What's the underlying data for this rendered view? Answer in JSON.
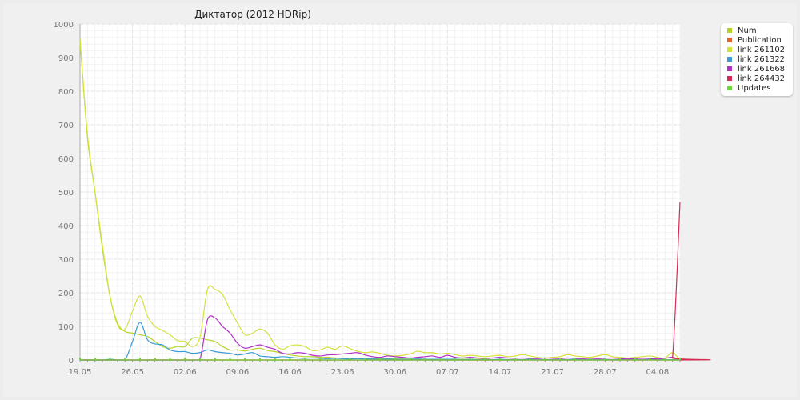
{
  "chart_data": {
    "type": "line",
    "title": "Диктатор (2012 HDRip)",
    "xlabel": "",
    "ylabel": "",
    "ylim": [
      0,
      1000
    ],
    "yticks": [
      0,
      100,
      200,
      300,
      400,
      500,
      600,
      700,
      800,
      900,
      1000
    ],
    "xticks": [
      "19.05",
      "26.05",
      "02.06",
      "09.06",
      "16.06",
      "23.06",
      "30.06",
      "07.07",
      "14.07",
      "21.07",
      "28.07",
      "04.08"
    ],
    "grid": true,
    "legend_position": "top-right",
    "x_start": "2012-05-19",
    "x_days": 80,
    "series": [
      {
        "name": "Num",
        "color": "#b8d42a",
        "points": [
          [
            0,
            955
          ],
          [
            1,
            660
          ],
          [
            2,
            500
          ],
          [
            3,
            330
          ],
          [
            4,
            190
          ],
          [
            5,
            110
          ],
          [
            6,
            85
          ],
          [
            7,
            80
          ],
          [
            8,
            75
          ],
          [
            9,
            70
          ],
          [
            10,
            55
          ],
          [
            11,
            40
          ],
          [
            12,
            35
          ],
          [
            13,
            40
          ],
          [
            14,
            40
          ],
          [
            15,
            65
          ],
          [
            16,
            65
          ],
          [
            17,
            60
          ],
          [
            18,
            55
          ],
          [
            19,
            40
          ],
          [
            20,
            30
          ],
          [
            21,
            30
          ],
          [
            22,
            27
          ],
          [
            23,
            32
          ],
          [
            24,
            35
          ],
          [
            25,
            28
          ],
          [
            26,
            25
          ],
          [
            27,
            20
          ],
          [
            28,
            15
          ],
          [
            29,
            12
          ],
          [
            30,
            10
          ],
          [
            31,
            10
          ],
          [
            32,
            8
          ],
          [
            33,
            8
          ],
          [
            34,
            6
          ],
          [
            35,
            6
          ],
          [
            36,
            5
          ],
          [
            37,
            5
          ],
          [
            38,
            4
          ],
          [
            39,
            4
          ],
          [
            40,
            4
          ],
          [
            41,
            4
          ],
          [
            42,
            3
          ],
          [
            43,
            3
          ],
          [
            44,
            3
          ],
          [
            45,
            3
          ],
          [
            46,
            2
          ],
          [
            47,
            2
          ],
          [
            48,
            2
          ],
          [
            49,
            2
          ],
          [
            50,
            2
          ],
          [
            51,
            2
          ],
          [
            52,
            2
          ],
          [
            53,
            2
          ],
          [
            54,
            2
          ],
          [
            55,
            1
          ],
          [
            56,
            1
          ],
          [
            57,
            1
          ],
          [
            58,
            1
          ],
          [
            59,
            1
          ],
          [
            60,
            1
          ],
          [
            61,
            1
          ],
          [
            62,
            1
          ],
          [
            63,
            1
          ],
          [
            64,
            1
          ],
          [
            65,
            1
          ],
          [
            66,
            1
          ],
          [
            67,
            1
          ],
          [
            68,
            1
          ],
          [
            69,
            1
          ],
          [
            70,
            1
          ],
          [
            71,
            1
          ],
          [
            72,
            1
          ],
          [
            73,
            1
          ],
          [
            74,
            1
          ],
          [
            75,
            1
          ],
          [
            76,
            1
          ],
          [
            77,
            1
          ],
          [
            78,
            1
          ],
          [
            79,
            1
          ],
          [
            80,
            1
          ]
        ]
      },
      {
        "name": "Publication",
        "color": "#e0642c",
        "points": [
          [
            0,
            0
          ],
          [
            80,
            0
          ]
        ]
      },
      {
        "name": "link 261102",
        "color": "#d4e23c",
        "points": [
          [
            0,
            950
          ],
          [
            1,
            670
          ],
          [
            2,
            500
          ],
          [
            3,
            340
          ],
          [
            4,
            190
          ],
          [
            5,
            105
          ],
          [
            6,
            92
          ],
          [
            7,
            145
          ],
          [
            8,
            190
          ],
          [
            9,
            130
          ],
          [
            10,
            100
          ],
          [
            11,
            88
          ],
          [
            12,
            75
          ],
          [
            13,
            58
          ],
          [
            14,
            55
          ],
          [
            15,
            40
          ],
          [
            16,
            68
          ],
          [
            17,
            210
          ],
          [
            18,
            210
          ],
          [
            19,
            195
          ],
          [
            20,
            150
          ],
          [
            21,
            110
          ],
          [
            22,
            75
          ],
          [
            23,
            80
          ],
          [
            24,
            92
          ],
          [
            25,
            80
          ],
          [
            26,
            45
          ],
          [
            27,
            32
          ],
          [
            28,
            42
          ],
          [
            29,
            45
          ],
          [
            30,
            40
          ],
          [
            31,
            28
          ],
          [
            32,
            30
          ],
          [
            33,
            38
          ],
          [
            34,
            32
          ],
          [
            35,
            42
          ],
          [
            36,
            34
          ],
          [
            37,
            26
          ],
          [
            38,
            22
          ],
          [
            39,
            24
          ],
          [
            40,
            20
          ],
          [
            41,
            14
          ],
          [
            42,
            12
          ],
          [
            43,
            14
          ],
          [
            44,
            18
          ],
          [
            45,
            26
          ],
          [
            46,
            22
          ],
          [
            47,
            22
          ],
          [
            48,
            18
          ],
          [
            49,
            20
          ],
          [
            50,
            16
          ],
          [
            51,
            12
          ],
          [
            52,
            14
          ],
          [
            53,
            12
          ],
          [
            54,
            10
          ],
          [
            55,
            12
          ],
          [
            56,
            14
          ],
          [
            57,
            10
          ],
          [
            58,
            12
          ],
          [
            59,
            16
          ],
          [
            60,
            12
          ],
          [
            61,
            8
          ],
          [
            62,
            6
          ],
          [
            63,
            8
          ],
          [
            64,
            10
          ],
          [
            65,
            16
          ],
          [
            66,
            12
          ],
          [
            67,
            10
          ],
          [
            68,
            8
          ],
          [
            69,
            12
          ],
          [
            70,
            16
          ],
          [
            71,
            10
          ],
          [
            72,
            8
          ],
          [
            73,
            6
          ],
          [
            74,
            8
          ],
          [
            75,
            10
          ],
          [
            76,
            12
          ],
          [
            77,
            8
          ],
          [
            78,
            6
          ],
          [
            79,
            22
          ],
          [
            80,
            0
          ]
        ]
      },
      {
        "name": "link 261322",
        "color": "#3b9bd4",
        "points": [
          [
            0,
            0
          ],
          [
            3,
            0
          ],
          [
            4,
            2
          ],
          [
            5,
            0
          ],
          [
            6,
            0
          ],
          [
            7,
            55
          ],
          [
            8,
            112
          ],
          [
            9,
            60
          ],
          [
            10,
            48
          ],
          [
            11,
            45
          ],
          [
            12,
            30
          ],
          [
            13,
            25
          ],
          [
            14,
            25
          ],
          [
            15,
            20
          ],
          [
            16,
            22
          ],
          [
            17,
            30
          ],
          [
            18,
            25
          ],
          [
            19,
            22
          ],
          [
            20,
            20
          ],
          [
            21,
            15
          ],
          [
            22,
            18
          ],
          [
            23,
            22
          ],
          [
            24,
            12
          ],
          [
            25,
            10
          ],
          [
            26,
            8
          ],
          [
            27,
            10
          ],
          [
            28,
            8
          ],
          [
            29,
            6
          ],
          [
            30,
            5
          ],
          [
            31,
            6
          ],
          [
            32,
            5
          ],
          [
            33,
            4
          ],
          [
            34,
            5
          ],
          [
            35,
            4
          ],
          [
            36,
            3
          ],
          [
            37,
            4
          ],
          [
            38,
            3
          ],
          [
            39,
            3
          ],
          [
            40,
            2
          ],
          [
            41,
            3
          ],
          [
            42,
            2
          ],
          [
            43,
            2
          ],
          [
            44,
            2
          ],
          [
            45,
            3
          ],
          [
            46,
            2
          ],
          [
            47,
            2
          ],
          [
            48,
            2
          ],
          [
            49,
            2
          ],
          [
            50,
            2
          ],
          [
            51,
            1
          ],
          [
            52,
            2
          ],
          [
            53,
            1
          ],
          [
            54,
            1
          ],
          [
            55,
            1
          ],
          [
            56,
            2
          ],
          [
            57,
            1
          ],
          [
            58,
            1
          ],
          [
            59,
            1
          ],
          [
            60,
            2
          ],
          [
            61,
            1
          ],
          [
            62,
            1
          ],
          [
            63,
            1
          ],
          [
            64,
            1
          ],
          [
            65,
            1
          ],
          [
            66,
            2
          ],
          [
            67,
            1
          ],
          [
            68,
            1
          ],
          [
            69,
            1
          ],
          [
            70,
            1
          ],
          [
            71,
            1
          ],
          [
            72,
            1
          ],
          [
            73,
            1
          ],
          [
            74,
            1
          ],
          [
            75,
            1
          ],
          [
            76,
            1
          ],
          [
            77,
            1
          ],
          [
            78,
            1
          ],
          [
            79,
            1
          ],
          [
            80,
            1
          ]
        ]
      },
      {
        "name": "link 261668",
        "color": "#b030c8",
        "points": [
          [
            0,
            0
          ],
          [
            15,
            0
          ],
          [
            16,
            2
          ],
          [
            17,
            120
          ],
          [
            18,
            125
          ],
          [
            19,
            100
          ],
          [
            20,
            80
          ],
          [
            21,
            50
          ],
          [
            22,
            35
          ],
          [
            23,
            40
          ],
          [
            24,
            45
          ],
          [
            25,
            38
          ],
          [
            26,
            32
          ],
          [
            27,
            20
          ],
          [
            28,
            18
          ],
          [
            29,
            22
          ],
          [
            30,
            20
          ],
          [
            31,
            14
          ],
          [
            32,
            12
          ],
          [
            33,
            15
          ],
          [
            34,
            16
          ],
          [
            35,
            18
          ],
          [
            36,
            20
          ],
          [
            37,
            22
          ],
          [
            38,
            15
          ],
          [
            39,
            10
          ],
          [
            40,
            8
          ],
          [
            41,
            12
          ],
          [
            42,
            10
          ],
          [
            43,
            8
          ],
          [
            44,
            6
          ],
          [
            45,
            8
          ],
          [
            46,
            10
          ],
          [
            47,
            12
          ],
          [
            48,
            8
          ],
          [
            49,
            14
          ],
          [
            50,
            8
          ],
          [
            51,
            6
          ],
          [
            52,
            8
          ],
          [
            53,
            6
          ],
          [
            54,
            5
          ],
          [
            55,
            6
          ],
          [
            56,
            8
          ],
          [
            57,
            6
          ],
          [
            58,
            5
          ],
          [
            59,
            6
          ],
          [
            60,
            5
          ],
          [
            61,
            4
          ],
          [
            62,
            6
          ],
          [
            63,
            5
          ],
          [
            64,
            4
          ],
          [
            65,
            6
          ],
          [
            66,
            5
          ],
          [
            67,
            4
          ],
          [
            68,
            5
          ],
          [
            69,
            4
          ],
          [
            70,
            5
          ],
          [
            71,
            6
          ],
          [
            72,
            4
          ],
          [
            73,
            3
          ],
          [
            74,
            4
          ],
          [
            75,
            5
          ],
          [
            76,
            4
          ],
          [
            77,
            3
          ],
          [
            78,
            5
          ],
          [
            79,
            8
          ],
          [
            80,
            0
          ]
        ]
      },
      {
        "name": "link 264432",
        "color": "#d42c54",
        "points": [
          [
            0,
            0
          ],
          [
            78,
            0
          ],
          [
            79,
            6
          ],
          [
            80,
            470
          ]
        ]
      },
      {
        "name": "Updates",
        "color": "#6cd43c",
        "points": [
          [
            0,
            0
          ],
          [
            80,
            0
          ]
        ]
      }
    ]
  }
}
